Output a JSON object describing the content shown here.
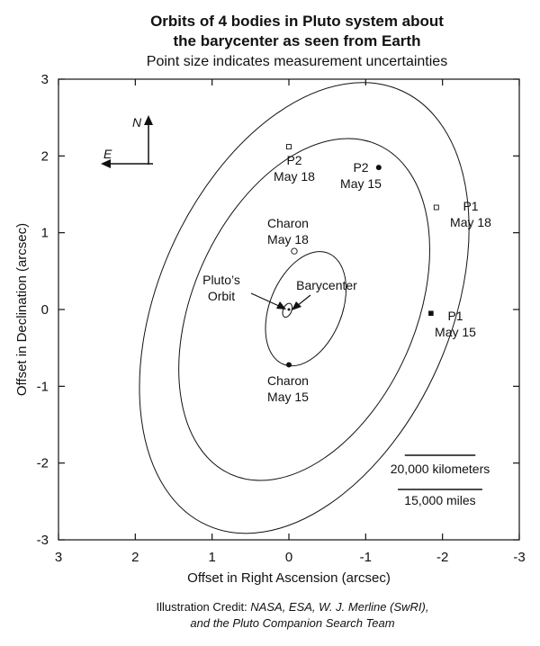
{
  "chart_data": {
    "type": "scatter",
    "title_line1": "Orbits of 4 bodies in Pluto system about",
    "title_line2": "the barycenter as seen from Earth",
    "subtitle": "Point size indicates measurement uncertainties",
    "xlabel": "Offset in Right Ascension (arcsec)",
    "ylabel": "Offset in Declination (arcsec)",
    "xlim": [
      3,
      -3
    ],
    "ylim": [
      -3,
      3
    ],
    "xticks": [
      3,
      2,
      1,
      0,
      -1,
      -2,
      -3
    ],
    "yticks": [
      3,
      2,
      1,
      0,
      -1,
      -2,
      -3
    ],
    "xtick_labels": [
      "3",
      "2",
      "1",
      "0",
      "-1",
      "-2",
      "-3"
    ],
    "ytick_labels": [
      "3",
      "2",
      "1",
      "0",
      "-1",
      "-2",
      "-3"
    ],
    "orbits": [
      {
        "label": "P1",
        "cx": -0.2,
        "cy": 0.02,
        "rx": 1.9,
        "ry": 3.1,
        "tilt_deg": 24
      },
      {
        "label": "P2",
        "cx": -0.2,
        "cy": 0.0,
        "rx": 1.45,
        "ry": 2.35,
        "tilt_deg": 24
      },
      {
        "label": "Charon",
        "cx": -0.22,
        "cy": 0.01,
        "rx": 0.47,
        "ry": 0.78,
        "tilt_deg": 22
      },
      {
        "label": "Pluto's Orbit",
        "cx": 0.02,
        "cy": -0.01,
        "rx": 0.055,
        "ry": 0.095,
        "tilt_deg": 22
      }
    ],
    "points": [
      {
        "name": "P2 May 18",
        "x": 0.0,
        "y": 2.12,
        "marker": "open-square"
      },
      {
        "name": "P2 May 15",
        "x": -1.17,
        "y": 1.85,
        "marker": "filled-circle"
      },
      {
        "name": "P1 May 18",
        "x": -1.92,
        "y": 1.33,
        "marker": "open-square"
      },
      {
        "name": "P1 May 15",
        "x": -1.85,
        "y": -0.05,
        "marker": "filled-square"
      },
      {
        "name": "Charon May 18",
        "x": -0.07,
        "y": 0.76,
        "marker": "open-circle"
      },
      {
        "name": "Charon May 15",
        "x": 0.0,
        "y": -0.72,
        "marker": "filled-circle"
      },
      {
        "name": "Barycenter",
        "x": 0.0,
        "y": 0.0,
        "marker": "small-dot"
      }
    ],
    "annotations": [
      {
        "id": "p2-may18",
        "lines": [
          "P2",
          "May 18"
        ]
      },
      {
        "id": "p2-may15",
        "lines": [
          "P2",
          "May 15"
        ]
      },
      {
        "id": "p1-may18",
        "lines": [
          "P1",
          "May 18"
        ]
      },
      {
        "id": "p1-may15",
        "lines": [
          "P1",
          "May 15"
        ]
      },
      {
        "id": "charon-may18",
        "lines": [
          "Charon",
          "May 18"
        ]
      },
      {
        "id": "charon-may15",
        "lines": [
          "Charon",
          "May 15"
        ]
      },
      {
        "id": "plutos-orbit",
        "lines": [
          "Pluto’s",
          "Orbit"
        ]
      },
      {
        "id": "barycenter",
        "lines": [
          "Barycenter"
        ]
      }
    ],
    "compass": {
      "north": "N",
      "east": "E"
    },
    "scale_bars": [
      {
        "label": "20,000 kilometers",
        "length_arcsec": 0.92
      },
      {
        "label": "15,000 miles",
        "length_arcsec": 1.1
      }
    ],
    "grid": false,
    "legend": "none"
  },
  "credit": {
    "line1_prefix": "Illustration Credit: ",
    "line1_italic": "NASA, ESA, W. J. Merline (SwRI),",
    "line2_italic": "and the Pluto Companion Search Team"
  }
}
